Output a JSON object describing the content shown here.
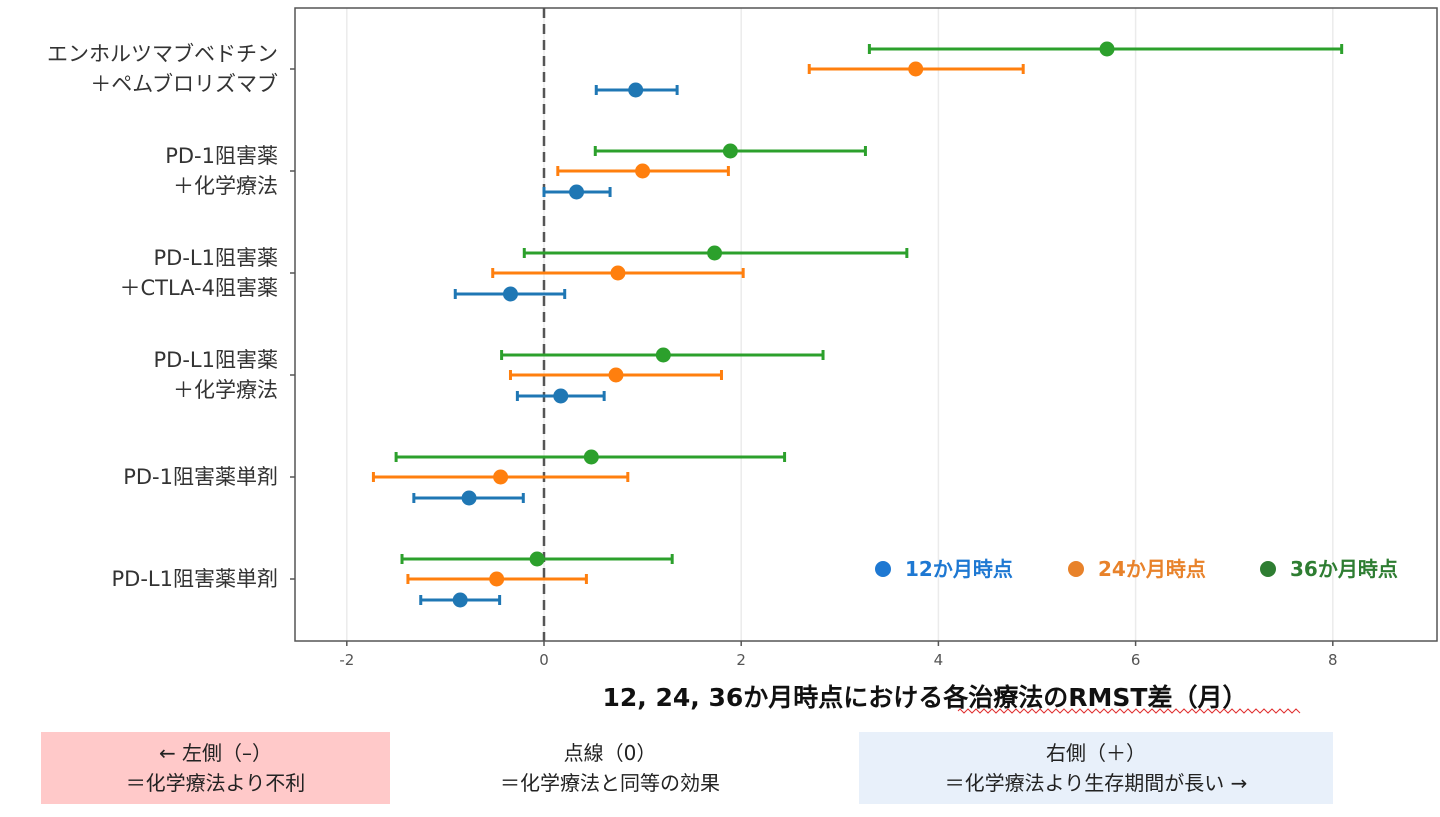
{
  "chart_data": {
    "type": "forest",
    "title": "",
    "xlabel": "12, 24, 36か月時点における各治療法のRMST差（月）",
    "ylabel": "",
    "xlim": [
      -2.5,
      9.0
    ],
    "xticks": [
      -2,
      0,
      2,
      4,
      6,
      8
    ],
    "xtick_labels": [
      "-2",
      "0",
      "2",
      "4",
      "6",
      "8"
    ],
    "grid": true,
    "reference_line": 0,
    "legend_position": "bottom-right",
    "categories": [
      [
        "エンホルツマブベドチン",
        "＋ペムブロリズマブ"
      ],
      [
        "PD-1阻害薬",
        "＋化学療法"
      ],
      [
        "PD-L1阻害薬",
        "＋CTLA-4阻害薬"
      ],
      [
        "PD-L1阻害薬",
        "＋化学療法"
      ],
      [
        "PD-1阻害薬単剤"
      ],
      [
        "PD-L1阻害薬単剤"
      ]
    ],
    "series": [
      {
        "name": "12か月時点",
        "color": "#1f77b4",
        "legend_color": "#1e78d2",
        "estimate": [
          0.93,
          0.33,
          -0.34,
          0.17,
          -0.76,
          -0.85
        ],
        "lower": [
          0.53,
          0.0,
          -0.9,
          -0.27,
          -1.32,
          -1.25
        ],
        "upper": [
          1.35,
          0.67,
          0.21,
          0.61,
          -0.21,
          -0.45
        ]
      },
      {
        "name": "24か月時点",
        "color": "#ff7f0e",
        "legend_color": "#e8822a",
        "estimate": [
          3.77,
          1.0,
          0.75,
          0.73,
          -0.44,
          -0.48
        ],
        "lower": [
          2.69,
          0.14,
          -0.52,
          -0.34,
          -1.73,
          -1.38
        ],
        "upper": [
          4.86,
          1.87,
          2.02,
          1.8,
          0.85,
          0.43
        ]
      },
      {
        "name": "36か月時点",
        "color": "#2ca02c",
        "legend_color": "#2e7d32",
        "estimate": [
          5.71,
          1.89,
          1.73,
          1.21,
          0.48,
          -0.07
        ],
        "lower": [
          3.3,
          0.52,
          -0.2,
          -0.43,
          -1.5,
          -1.44
        ],
        "upper": [
          8.09,
          3.26,
          3.68,
          2.83,
          2.44,
          1.3
        ]
      }
    ]
  },
  "notes": {
    "left": {
      "line1": "← 左側（–）",
      "line2": "＝化学療法より不利",
      "bg": "#ffc9c9"
    },
    "middle": {
      "line1": "点線（0）",
      "line2": "＝化学療法と同等の効果"
    },
    "right": {
      "line1": "右側（＋）",
      "line2": "＝化学療法より生存期間が長い →",
      "bg": "#e8f0fa"
    }
  }
}
